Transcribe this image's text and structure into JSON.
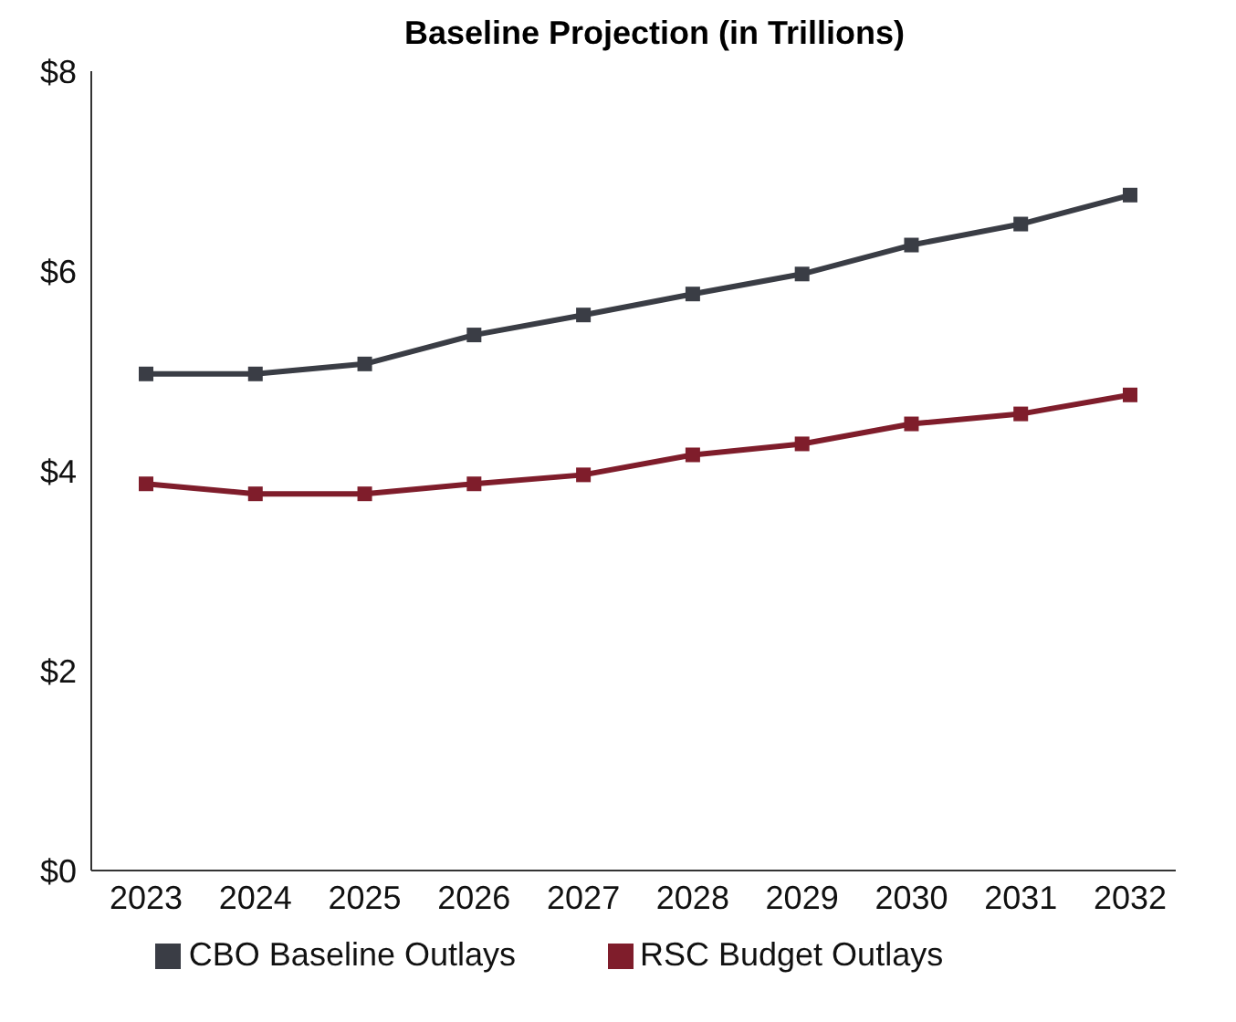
{
  "chart_data": {
    "type": "line",
    "title": "Baseline Projection (in Trillions)",
    "categories": [
      "2023",
      "2024",
      "2025",
      "2026",
      "2027",
      "2028",
      "2029",
      "2030",
      "2031",
      "2032"
    ],
    "series": [
      {
        "name": "CBO Baseline Outlays",
        "color": "#3a3d45",
        "values": [
          4.97,
          4.97,
          5.07,
          5.36,
          5.56,
          5.77,
          5.97,
          6.26,
          6.47,
          6.76
        ]
      },
      {
        "name": "RSC Budget Outlays",
        "color": "#7f1d2b",
        "values": [
          3.87,
          3.77,
          3.77,
          3.87,
          3.96,
          4.16,
          4.27,
          4.47,
          4.57,
          4.76
        ]
      }
    ],
    "ylim": [
      0,
      8
    ],
    "yticks": [
      {
        "value": 0,
        "label": "$0"
      },
      {
        "value": 2,
        "label": "$2"
      },
      {
        "value": 4,
        "label": "$4"
      },
      {
        "value": 6,
        "label": "$6"
      },
      {
        "value": 8,
        "label": "$8"
      }
    ],
    "grid": false,
    "legend": "bottom",
    "marker": "square",
    "line_style": "solid"
  }
}
